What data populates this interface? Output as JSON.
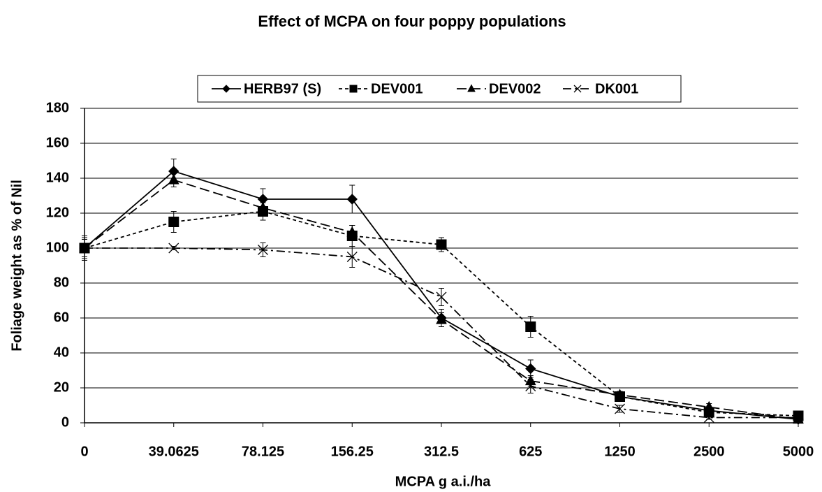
{
  "chart_data": {
    "type": "line",
    "title": "Effect of MCPA on four poppy populations",
    "x_label": "MCPA g a.i./ha",
    "y_label": "Foliage weight as % of Nil",
    "categories": [
      "0",
      "39.0625",
      "78.125",
      "156.25",
      "312.5",
      "625",
      "1250",
      "2500",
      "5000"
    ],
    "series": [
      {
        "name": "HERB97 (S)",
        "color": "#000000",
        "dash": "solid",
        "marker": "diamond",
        "values": [
          100,
          144,
          128,
          128,
          60,
          31,
          15,
          7,
          2
        ],
        "errors": [
          7,
          7,
          6,
          8,
          5,
          5,
          2,
          2,
          1
        ]
      },
      {
        "name": "DEV001",
        "color": "#000000",
        "dash": "short",
        "marker": "square",
        "values": [
          100,
          115,
          121,
          107,
          102,
          55,
          15,
          6,
          4
        ],
        "errors": [
          7,
          6,
          5,
          6,
          4,
          6,
          2,
          2,
          1
        ]
      },
      {
        "name": "DEV002",
        "color": "#000000",
        "dash": "long",
        "marker": "triangle",
        "values": [
          100,
          139,
          123,
          109,
          59,
          24,
          16,
          9,
          2
        ],
        "errors": [
          6,
          4,
          4,
          4,
          4,
          3,
          2,
          2,
          1
        ]
      },
      {
        "name": "DK001",
        "color": "#000000",
        "dash": "dashdot",
        "marker": "x",
        "values": [
          100,
          100,
          99,
          95,
          72,
          21,
          8,
          3,
          3
        ],
        "errors": [
          5,
          1,
          4,
          6,
          5,
          4,
          2,
          1,
          1
        ]
      }
    ],
    "ylim": [
      0,
      180
    ],
    "yticks": [
      0,
      20,
      40,
      60,
      80,
      100,
      120,
      140,
      160,
      180
    ],
    "grid": true,
    "legend": "top"
  }
}
